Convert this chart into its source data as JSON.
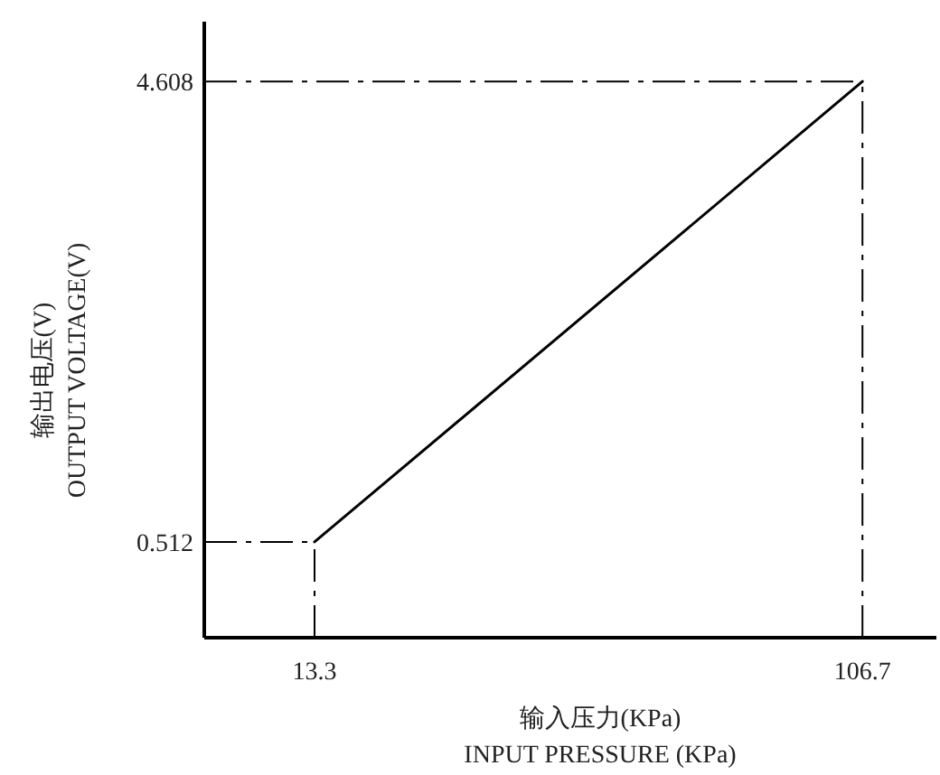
{
  "chart_data": {
    "type": "line",
    "xlabel": "输入压力(KPa)\nINPUT PRESSURE (KPa)",
    "ylabel": "输出电压(V)\nOUTPUT VOLTAGE(V)",
    "x": [
      13.3,
      106.7
    ],
    "series": [
      {
        "color": "#000000",
        "values": [
          0.512,
          4.608
        ]
      }
    ],
    "xlim": [
      -5.5,
      119.3
    ],
    "ylim": [
      -0.34,
      5.14
    ],
    "xticks": [
      13.3,
      106.7
    ],
    "yticks": [
      0.512,
      4.608
    ],
    "ref_lines": [
      {
        "axis": "y",
        "value": 4.608,
        "line_style": "dashdot",
        "color": "#000000"
      },
      {
        "axis": "y",
        "value": 0.512,
        "line_style": "dashdot",
        "color": "#000000"
      },
      {
        "axis": "x",
        "value": 13.3,
        "line_style": "dashdot",
        "color": "#000000"
      },
      {
        "axis": "x",
        "value": 106.7,
        "line_style": "dashdot",
        "color": "#000000"
      }
    ],
    "grid": false,
    "marker": "none",
    "line_style": "solid"
  }
}
